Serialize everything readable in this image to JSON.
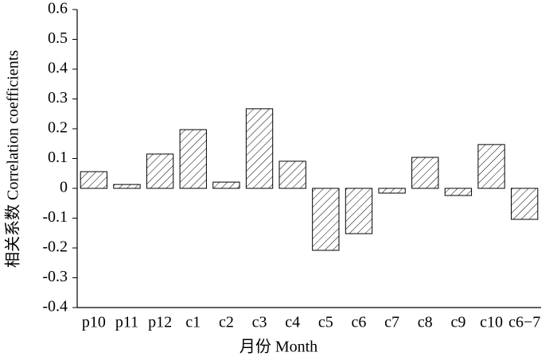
{
  "chart_data": {
    "type": "bar",
    "x_label": "月份 Month",
    "y_label": "相关系数 Correlation coefficients",
    "categories": [
      "p10",
      "p11",
      "p12",
      "c1",
      "c2",
      "c3",
      "c4",
      "c5",
      "c6",
      "c7",
      "c8",
      "c9",
      "c10",
      "c6−7"
    ],
    "values": [
      0.056,
      0.013,
      0.115,
      0.197,
      0.021,
      0.267,
      0.091,
      -0.208,
      -0.152,
      -0.016,
      0.104,
      -0.024,
      0.147,
      -0.104
    ],
    "color": "#000000",
    "ylim": [
      -0.4,
      0.6
    ],
    "yticks": [
      -0.4,
      -0.3,
      -0.2,
      -0.1,
      0,
      0.1,
      0.2,
      0.3,
      0.4,
      0.5,
      0.6
    ],
    "grid": false
  }
}
